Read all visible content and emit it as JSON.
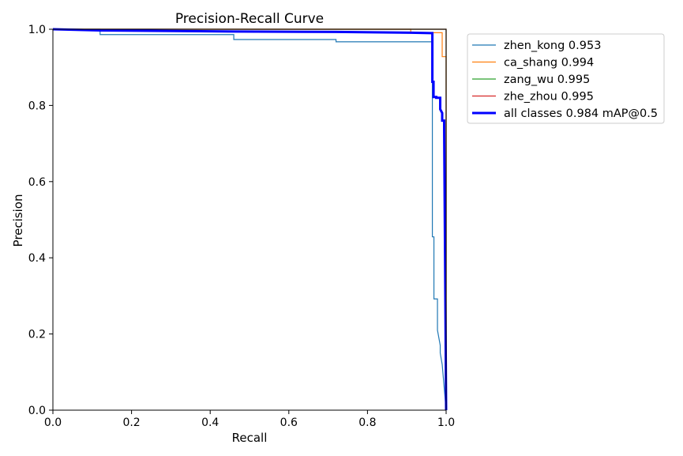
{
  "chart_data": {
    "type": "line",
    "title": "Precision-Recall Curve",
    "xlabel": "Recall",
    "ylabel": "Precision",
    "xlim": [
      0,
      1
    ],
    "ylim": [
      0,
      1
    ],
    "xticks": [
      "0.0",
      "0.2",
      "0.4",
      "0.6",
      "0.8",
      "1.0"
    ],
    "yticks": [
      "0.0",
      "0.2",
      "0.4",
      "0.6",
      "0.8",
      "1.0"
    ],
    "grid": false,
    "legend_position": "outside-top-right",
    "series": [
      {
        "name": "zhen_kong 0.953",
        "color": "#1f77b4",
        "width": 1.2,
        "x": [
          0,
          0.12,
          0.12,
          0.46,
          0.46,
          0.72,
          0.72,
          0.965,
          0.965,
          0.969,
          0.969,
          0.978,
          0.978,
          0.985,
          0.985,
          0.99,
          1.0
        ],
        "y": [
          1.0,
          1.0,
          0.986,
          0.986,
          0.973,
          0.973,
          0.967,
          0.967,
          0.455,
          0.455,
          0.292,
          0.292,
          0.21,
          0.17,
          0.15,
          0.12,
          0.0
        ]
      },
      {
        "name": "ca_shang 0.994",
        "color": "#ff7f0e",
        "width": 1.2,
        "x": [
          0,
          0.91,
          0.91,
          0.99,
          0.99,
          1.0,
          1.0
        ],
        "y": [
          1.0,
          1.0,
          0.991,
          0.991,
          0.928,
          0.928,
          0.0
        ]
      },
      {
        "name": "zang_wu 0.995",
        "color": "#2ca02c",
        "width": 1.2,
        "x": [
          0,
          1.0,
          1.0
        ],
        "y": [
          1.0,
          1.0,
          0.0
        ]
      },
      {
        "name": "zhe_zhou 0.995",
        "color": "#d62728",
        "width": 1.2,
        "x": [
          0,
          1.0,
          1.0
        ],
        "y": [
          1.0,
          1.0,
          0.0
        ]
      },
      {
        "name": "all classes 0.984 mAP@0.5",
        "color": "#0000ff",
        "width": 3,
        "x": [
          0,
          0.12,
          0.46,
          0.72,
          0.91,
          0.96,
          0.965,
          0.965,
          0.968,
          0.968,
          0.975,
          0.975,
          0.985,
          0.985,
          0.99,
          0.99,
          0.995,
          0.995,
          1.0
        ],
        "y": [
          1.0,
          0.997,
          0.994,
          0.993,
          0.991,
          0.99,
          0.99,
          0.862,
          0.862,
          0.822,
          0.822,
          0.82,
          0.82,
          0.79,
          0.78,
          0.76,
          0.76,
          0.74,
          0.0
        ]
      }
    ]
  }
}
